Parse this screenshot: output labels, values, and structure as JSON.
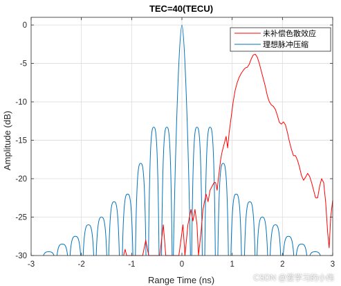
{
  "watermark": "CSDN @爱学习的小伟",
  "chart_data": {
    "type": "line",
    "title": "TEC=40(TECU)",
    "xlabel": "Range Time (ns)",
    "ylabel": "Amplitude (dB)",
    "xlim": [
      -3,
      3
    ],
    "ylim": [
      -30,
      1
    ],
    "xticks": [
      -3,
      -2,
      -1,
      0,
      1,
      2,
      3
    ],
    "yticks": [
      0,
      -5,
      -10,
      -15,
      -20,
      -25,
      -30
    ],
    "grid": true,
    "legend_position": "top-right",
    "series": [
      {
        "name": "未补偿色散效应",
        "color": "#ff0000",
        "points": [
          [
            -1.16,
            -30
          ],
          [
            -1.13,
            -29.2
          ],
          [
            -1.1,
            -30
          ],
          [
            -0.78,
            -30
          ],
          [
            -0.72,
            -28
          ],
          [
            -0.66,
            -30
          ],
          [
            -0.44,
            -30
          ],
          [
            -0.37,
            -26
          ],
          [
            -0.32,
            -30
          ],
          [
            -0.06,
            -30
          ],
          [
            0.02,
            -26
          ],
          [
            0.06,
            -30
          ],
          [
            0.12,
            -26
          ],
          [
            0.18,
            -24
          ],
          [
            0.22,
            -25.5
          ],
          [
            0.26,
            -24
          ],
          [
            0.3,
            -26
          ],
          [
            0.33,
            -30
          ],
          [
            0.38,
            -27
          ],
          [
            0.42,
            -24
          ],
          [
            0.48,
            -22
          ],
          [
            0.52,
            -23
          ],
          [
            0.56,
            -21.5
          ],
          [
            0.6,
            -21
          ],
          [
            0.64,
            -20.5
          ],
          [
            0.67,
            -20.5
          ],
          [
            0.7,
            -21.5
          ],
          [
            0.73,
            -19.8
          ],
          [
            0.77,
            -17.5
          ],
          [
            0.8,
            -16.5
          ],
          [
            0.84,
            -15.5
          ],
          [
            0.88,
            -14.5
          ],
          [
            0.91,
            -16
          ],
          [
            0.94,
            -14
          ],
          [
            0.98,
            -12
          ],
          [
            1.02,
            -10
          ],
          [
            1.06,
            -8.5
          ],
          [
            1.1,
            -7.5
          ],
          [
            1.14,
            -6.8
          ],
          [
            1.18,
            -6.3
          ],
          [
            1.22,
            -5.9
          ],
          [
            1.26,
            -5.6
          ],
          [
            1.3,
            -5.5
          ],
          [
            1.34,
            -5.1
          ],
          [
            1.38,
            -4.4
          ],
          [
            1.42,
            -3.9
          ],
          [
            1.46,
            -3.8
          ],
          [
            1.5,
            -4.2
          ],
          [
            1.54,
            -5
          ],
          [
            1.58,
            -6
          ],
          [
            1.62,
            -7
          ],
          [
            1.66,
            -8
          ],
          [
            1.7,
            -9.2
          ],
          [
            1.74,
            -10
          ],
          [
            1.78,
            -10.4
          ],
          [
            1.82,
            -10.6
          ],
          [
            1.86,
            -11
          ],
          [
            1.9,
            -11.8
          ],
          [
            1.94,
            -12.7
          ],
          [
            1.98,
            -12.9
          ],
          [
            2.02,
            -12.6
          ],
          [
            2.06,
            -13
          ],
          [
            2.1,
            -14
          ],
          [
            2.14,
            -15.2
          ],
          [
            2.18,
            -16.2
          ],
          [
            2.22,
            -17
          ],
          [
            2.26,
            -17
          ],
          [
            2.3,
            -17.6
          ],
          [
            2.34,
            -18.5
          ],
          [
            2.38,
            -19.6
          ],
          [
            2.42,
            -20.2
          ],
          [
            2.46,
            -19.8
          ],
          [
            2.5,
            -19.3
          ],
          [
            2.54,
            -19.7
          ],
          [
            2.58,
            -20.5
          ],
          [
            2.62,
            -21.5
          ],
          [
            2.66,
            -22.5
          ],
          [
            2.7,
            -22.5
          ],
          [
            2.74,
            -21
          ],
          [
            2.78,
            -20
          ],
          [
            2.82,
            -20.5
          ],
          [
            2.86,
            -23
          ],
          [
            2.9,
            -27
          ],
          [
            2.93,
            -29
          ],
          [
            2.96,
            -25
          ],
          [
            3.0,
            -22.8
          ]
        ]
      },
      {
        "name": "理想脉冲压缩",
        "color": "#0072bd",
        "sidelobes": [
          [
            -2.65,
            -29.5
          ],
          [
            -2.38,
            -28.5
          ],
          [
            -2.12,
            -27.5
          ],
          [
            -1.86,
            -26
          ],
          [
            -1.6,
            -25
          ],
          [
            -1.35,
            -23
          ],
          [
            -1.08,
            -22
          ],
          [
            -0.82,
            -18
          ],
          [
            -0.56,
            -13.3
          ],
          [
            -0.3,
            -13.3
          ],
          [
            0.3,
            -13.3
          ],
          [
            0.56,
            -13.3
          ],
          [
            0.82,
            -18
          ],
          [
            1.08,
            -22
          ],
          [
            1.35,
            -23
          ],
          [
            1.6,
            -25
          ],
          [
            1.86,
            -26
          ],
          [
            2.12,
            -27.5
          ],
          [
            2.38,
            -28.5
          ],
          [
            2.65,
            -29.5
          ]
        ],
        "mainlobe": [
          [
            -0.17,
            -30
          ],
          [
            0,
            0
          ],
          [
            0.17,
            -30
          ]
        ]
      }
    ]
  }
}
